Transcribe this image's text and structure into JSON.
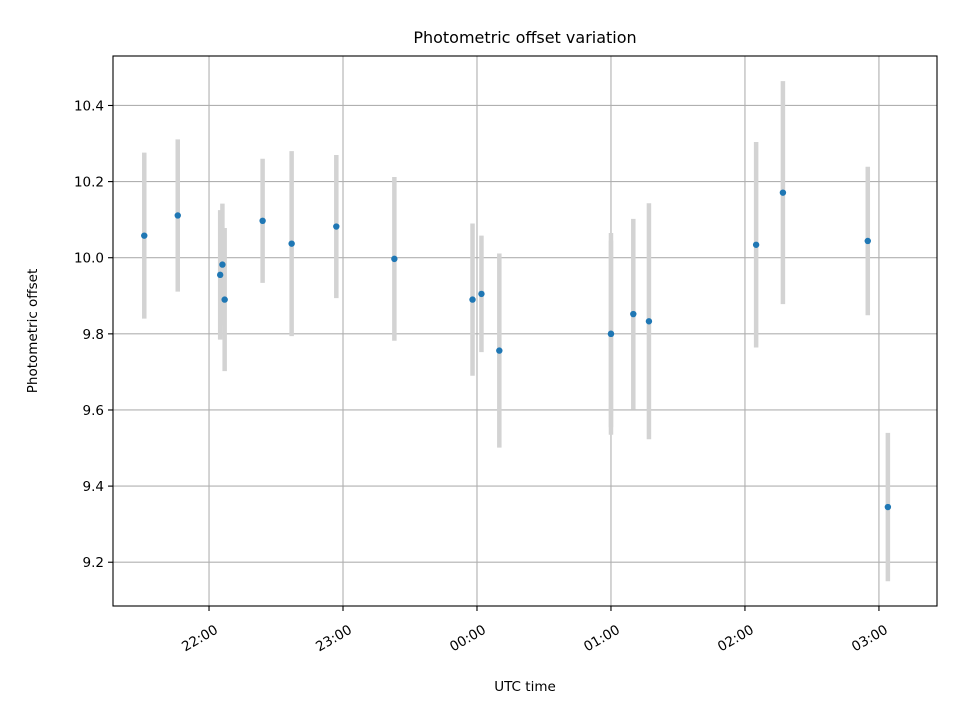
{
  "chart_data": {
    "type": "scatter",
    "title": "Photometric offset variation",
    "xlabel": "UTC time",
    "ylabel": "Photometric offset",
    "x_unit": "UTC time (HH:MM)",
    "xlim": [
      "21:17",
      "03:26"
    ],
    "ylim": [
      9.085,
      10.53
    ],
    "x_ticks": [
      "22:00",
      "23:00",
      "00:00",
      "01:00",
      "02:00",
      "03:00"
    ],
    "y_ticks": [
      9.2,
      9.4,
      9.6,
      9.8,
      10.0,
      10.2,
      10.4
    ],
    "y_tick_labels": [
      "9.2",
      "9.4",
      "9.6",
      "9.8",
      "10.0",
      "10.2",
      "10.4"
    ],
    "grid": true,
    "point_color": "#1f77b4",
    "errorbar_color": "#d3d3d3",
    "series": [
      {
        "points": [
          {
            "x": "21:31",
            "y": 10.058,
            "err": 0.218
          },
          {
            "x": "21:46",
            "y": 10.111,
            "err": 0.2
          },
          {
            "x": "22:05",
            "y": 9.955,
            "err": 0.17
          },
          {
            "x": "22:06",
            "y": 9.982,
            "err": 0.16
          },
          {
            "x": "22:07",
            "y": 9.89,
            "err": 0.188
          },
          {
            "x": "22:24",
            "y": 10.097,
            "err": 0.163
          },
          {
            "x": "22:37",
            "y": 10.037,
            "err": 0.243
          },
          {
            "x": "22:57",
            "y": 10.082,
            "err": 0.188
          },
          {
            "x": "23:23",
            "y": 9.997,
            "err": 0.215
          },
          {
            "x": "23:58",
            "y": 9.89,
            "err": 0.2
          },
          {
            "x": "00:02",
            "y": 9.905,
            "err": 0.153
          },
          {
            "x": "00:10",
            "y": 9.756,
            "err": 0.255
          },
          {
            "x": "01:00",
            "y": 9.8,
            "err": 0.265
          },
          {
            "x": "01:00",
            "y": 9.8,
            "err": 0.245
          },
          {
            "x": "01:10",
            "y": 9.852,
            "err": 0.25
          },
          {
            "x": "01:17",
            "y": 9.833,
            "err": 0.31
          },
          {
            "x": "02:05",
            "y": 10.034,
            "err": 0.27
          },
          {
            "x": "02:17",
            "y": 10.171,
            "err": 0.293
          },
          {
            "x": "02:55",
            "y": 10.044,
            "err": 0.195
          },
          {
            "x": "03:04",
            "y": 9.345,
            "err": 0.195
          }
        ]
      }
    ]
  }
}
